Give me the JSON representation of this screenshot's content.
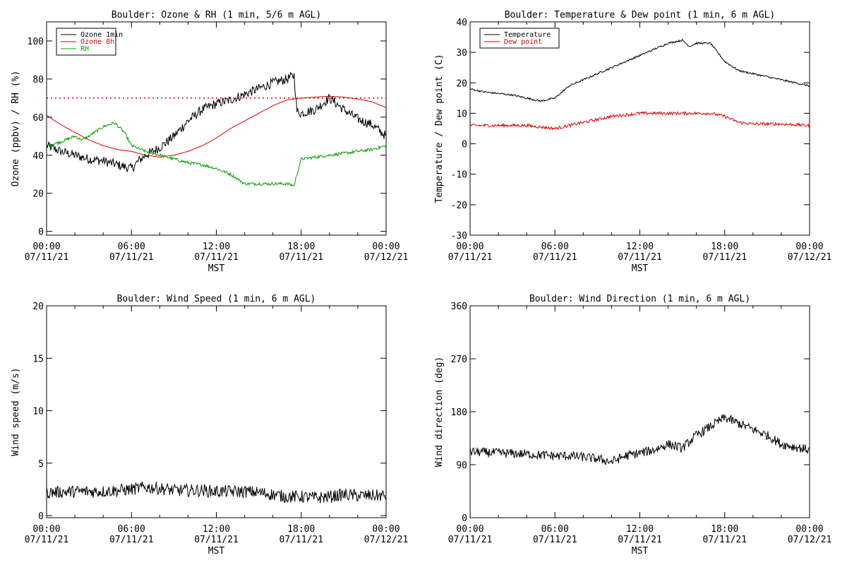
{
  "chart_data": [
    {
      "id": "ozone",
      "type": "line",
      "title": "Boulder: Ozone & RH (1 min, 5/6 m AGL)",
      "xlabel": "MST",
      "ylabel": "Ozone (ppbv) / RH (%)",
      "ylim": [
        -2,
        110
      ],
      "yticks": [
        0,
        20,
        40,
        60,
        80,
        100
      ],
      "xlim": [
        0,
        24
      ],
      "xticks": [
        {
          "t": 0,
          "time": "00:00",
          "date": "07/11/21"
        },
        {
          "t": 6,
          "time": "06:00",
          "date": "07/11/21"
        },
        {
          "t": 12,
          "time": "12:00",
          "date": "07/11/21"
        },
        {
          "t": 18,
          "time": "18:00",
          "date": "07/11/21"
        },
        {
          "t": 24,
          "time": "00:00",
          "date": "07/12/21"
        }
      ],
      "reference_line": {
        "y": 70,
        "style": "dotted",
        "color": "#dd0000"
      },
      "legend": {
        "position": "top-left"
      },
      "series": [
        {
          "name": "Ozone 1min",
          "color": "#000000",
          "noise": 2.5,
          "points": [
            [
              0,
              45
            ],
            [
              1,
              42
            ],
            [
              2,
              40
            ],
            [
              3,
              38
            ],
            [
              4,
              37
            ],
            [
              5,
              35
            ],
            [
              6,
              33
            ],
            [
              6.5,
              37
            ],
            [
              7,
              40
            ],
            [
              8,
              44
            ],
            [
              9,
              50
            ],
            [
              10,
              58
            ],
            [
              11,
              64
            ],
            [
              12,
              67
            ],
            [
              13,
              69
            ],
            [
              14,
              72
            ],
            [
              15,
              75
            ],
            [
              16,
              78
            ],
            [
              17,
              80
            ],
            [
              17.5,
              82
            ],
            [
              17.7,
              63
            ],
            [
              18,
              62
            ],
            [
              19,
              64
            ],
            [
              20,
              70
            ],
            [
              21,
              64
            ],
            [
              22,
              59
            ],
            [
              23,
              56
            ],
            [
              24,
              50
            ]
          ]
        },
        {
          "name": "Ozone 8h",
          "color": "#dd0000",
          "noise": 0,
          "points": [
            [
              0,
              61
            ],
            [
              1,
              56
            ],
            [
              2,
              52
            ],
            [
              3,
              48
            ],
            [
              4,
              45
            ],
            [
              5,
              43
            ],
            [
              6,
              42
            ],
            [
              7,
              40
            ],
            [
              8,
              39
            ],
            [
              9,
              40
            ],
            [
              10,
              42
            ],
            [
              11,
              45
            ],
            [
              12,
              49
            ],
            [
              13,
              54
            ],
            [
              14,
              58
            ],
            [
              15,
              62
            ],
            [
              16,
              66
            ],
            [
              17,
              69
            ],
            [
              18,
              70
            ],
            [
              19,
              70.5
            ],
            [
              20,
              71
            ],
            [
              21,
              70.5
            ],
            [
              22,
              69.5
            ],
            [
              23,
              68
            ],
            [
              24,
              65
            ]
          ]
        },
        {
          "name": "RH",
          "color": "#00a000",
          "noise": 0.8,
          "points": [
            [
              0,
              45
            ],
            [
              1,
              47
            ],
            [
              2,
              50
            ],
            [
              2.5,
              48
            ],
            [
              3,
              50
            ],
            [
              4,
              55
            ],
            [
              4.8,
              57
            ],
            [
              5.5,
              52
            ],
            [
              6,
              45
            ],
            [
              7,
              42
            ],
            [
              8,
              40
            ],
            [
              9,
              38
            ],
            [
              10,
              36
            ],
            [
              11,
              35
            ],
            [
              12,
              33
            ],
            [
              13,
              30
            ],
            [
              14,
              25
            ],
            [
              15,
              25
            ],
            [
              16,
              25
            ],
            [
              17,
              25
            ],
            [
              17.5,
              24
            ],
            [
              17.7,
              30
            ],
            [
              18,
              38
            ],
            [
              19,
              39
            ],
            [
              20,
              40
            ],
            [
              21,
              41
            ],
            [
              22,
              42
            ],
            [
              23,
              43
            ],
            [
              24,
              45
            ]
          ]
        }
      ]
    },
    {
      "id": "temp",
      "type": "line",
      "title": "Boulder: Temperature & Dew point (1 min, 6 m AGL)",
      "xlabel": "MST",
      "ylabel": "Temperature / Dew point (C)",
      "ylim": [
        -30,
        40
      ],
      "yticks": [
        -30,
        -20,
        -10,
        0,
        10,
        20,
        30,
        40
      ],
      "xlim": [
        0,
        24
      ],
      "xticks": [
        {
          "t": 0,
          "time": "00:00",
          "date": "07/11/21"
        },
        {
          "t": 6,
          "time": "06:00",
          "date": "07/11/21"
        },
        {
          "t": 12,
          "time": "12:00",
          "date": "07/11/21"
        },
        {
          "t": 18,
          "time": "18:00",
          "date": "07/11/21"
        },
        {
          "t": 24,
          "time": "00:00",
          "date": "07/12/21"
        }
      ],
      "legend": {
        "position": "top-left"
      },
      "series": [
        {
          "name": "Temperature",
          "color": "#000000",
          "noise": 0.3,
          "points": [
            [
              0,
              18
            ],
            [
              1,
              17
            ],
            [
              2,
              16.5
            ],
            [
              3,
              16
            ],
            [
              4,
              15
            ],
            [
              5,
              14
            ],
            [
              6,
              15
            ],
            [
              7,
              19
            ],
            [
              8,
              21
            ],
            [
              9,
              23
            ],
            [
              10,
              25
            ],
            [
              11,
              27
            ],
            [
              12,
              29
            ],
            [
              13,
              31
            ],
            [
              14,
              33
            ],
            [
              15,
              34
            ],
            [
              15.5,
              32
            ],
            [
              16,
              33
            ],
            [
              17,
              33
            ],
            [
              18,
              27
            ],
            [
              19,
              24
            ],
            [
              20,
              23
            ],
            [
              21,
              22
            ],
            [
              22,
              21
            ],
            [
              23,
              20
            ],
            [
              24,
              19
            ]
          ]
        },
        {
          "name": "Dew point",
          "color": "#dd0000",
          "noise": 0.5,
          "points": [
            [
              0,
              6
            ],
            [
              2,
              6
            ],
            [
              4,
              6
            ],
            [
              5,
              5.5
            ],
            [
              6,
              5
            ],
            [
              7,
              6
            ],
            [
              8,
              7
            ],
            [
              9,
              8
            ],
            [
              10,
              9
            ],
            [
              11,
              9.5
            ],
            [
              12,
              10
            ],
            [
              13,
              10
            ],
            [
              14,
              10
            ],
            [
              15,
              10
            ],
            [
              16,
              10
            ],
            [
              17,
              10
            ],
            [
              18,
              9
            ],
            [
              19,
              7
            ],
            [
              20,
              6.5
            ],
            [
              22,
              6.5
            ],
            [
              24,
              6
            ]
          ]
        }
      ]
    },
    {
      "id": "wspd",
      "type": "line",
      "title": "Boulder: Wind Speed (1 min, 6 m AGL)",
      "xlabel": "MST",
      "ylabel": "Wind speed (m/s)",
      "ylim": [
        -0.2,
        20
      ],
      "yticks": [
        0,
        5,
        10,
        15,
        20
      ],
      "xlim": [
        0,
        24
      ],
      "xticks": [
        {
          "t": 0,
          "time": "00:00",
          "date": "07/11/21"
        },
        {
          "t": 6,
          "time": "06:00",
          "date": "07/11/21"
        },
        {
          "t": 12,
          "time": "12:00",
          "date": "07/11/21"
        },
        {
          "t": 18,
          "time": "18:00",
          "date": "07/11/21"
        },
        {
          "t": 24,
          "time": "00:00",
          "date": "07/12/21"
        }
      ],
      "series": [
        {
          "name": "",
          "color": "#000000",
          "noise": 0.6,
          "points": [
            [
              0,
              2.2
            ],
            [
              2,
              2.3
            ],
            [
              4,
              2.3
            ],
            [
              6,
              2.5
            ],
            [
              7,
              2.7
            ],
            [
              8,
              2.6
            ],
            [
              9,
              2.4
            ],
            [
              10,
              2.4
            ],
            [
              11,
              2.4
            ],
            [
              12,
              2.3
            ],
            [
              13,
              2.3
            ],
            [
              14,
              2.3
            ],
            [
              15,
              2.2
            ],
            [
              16,
              2.0
            ],
            [
              17,
              1.8
            ],
            [
              18,
              1.8
            ],
            [
              19,
              1.7
            ],
            [
              20,
              1.8
            ],
            [
              21,
              2.0
            ],
            [
              22,
              1.9
            ],
            [
              23,
              1.9
            ],
            [
              24,
              1.9
            ]
          ]
        }
      ]
    },
    {
      "id": "wdir",
      "type": "line",
      "title": "Boulder: Wind Direction (1 min, 6 m AGL)",
      "xlabel": "MST",
      "ylabel": "Wind direction (deg)",
      "ylim": [
        0,
        360
      ],
      "yticks": [
        0,
        90,
        180,
        270,
        360
      ],
      "xlim": [
        0,
        24
      ],
      "xticks": [
        {
          "t": 0,
          "time": "00:00",
          "date": "07/11/21"
        },
        {
          "t": 6,
          "time": "06:00",
          "date": "07/11/21"
        },
        {
          "t": 12,
          "time": "12:00",
          "date": "07/11/21"
        },
        {
          "t": 18,
          "time": "18:00",
          "date": "07/11/21"
        },
        {
          "t": 24,
          "time": "00:00",
          "date": "07/12/21"
        }
      ],
      "series": [
        {
          "name": "",
          "color": "#000000",
          "noise": 8,
          "points": [
            [
              0,
              112
            ],
            [
              2,
              110
            ],
            [
              4,
              108
            ],
            [
              6,
              105
            ],
            [
              7,
              105
            ],
            [
              8,
              103
            ],
            [
              9,
              100
            ],
            [
              10,
              95
            ],
            [
              11,
              105
            ],
            [
              12,
              110
            ],
            [
              13,
              115
            ],
            [
              14,
              125
            ],
            [
              15,
              118
            ],
            [
              16,
              140
            ],
            [
              17,
              155
            ],
            [
              18,
              170
            ],
            [
              19,
              160
            ],
            [
              20,
              150
            ],
            [
              21,
              140
            ],
            [
              22,
              125
            ],
            [
              23,
              120
            ],
            [
              24,
              115
            ]
          ]
        }
      ]
    }
  ]
}
